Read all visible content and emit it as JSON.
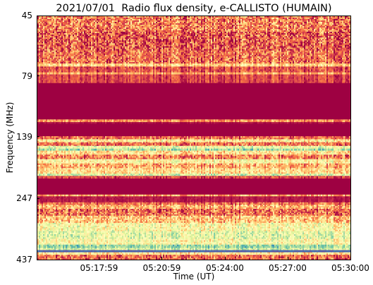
{
  "chart_data": {
    "type": "heatmap",
    "title": "2021/07/01  Radio flux density, e-CALLISTO (HUMAIN)",
    "xlabel": "Time (UT)",
    "ylabel": "Frequency (MHz)",
    "x_tick_labels": [
      "05:17:59",
      "05:20:59",
      "05:24:00",
      "05:27:00",
      "05:30:00"
    ],
    "x_range": [
      "05:15:00",
      "05:30:00"
    ],
    "y_tick_labels": [
      "45",
      "79",
      "139",
      "247",
      "437"
    ],
    "y_range_mhz": [
      45,
      437
    ],
    "colormap": "Spectral",
    "colors": [
      "#9e0142",
      "#d53e4f",
      "#f46d43",
      "#fdae61",
      "#fee08b",
      "#ffffbf",
      "#e6f598",
      "#abdda4",
      "#66c2a5",
      "#3288bd",
      "#5e4fa2"
    ],
    "bands": [
      {
        "f0": 45,
        "f1": 52,
        "level": 0.22,
        "noise": 0.18
      },
      {
        "f0": 52,
        "f1": 62,
        "level": 0.16,
        "noise": 0.2
      },
      {
        "f0": 62,
        "f1": 70,
        "level": 0.2,
        "noise": 0.16
      },
      {
        "f0": 70,
        "f1": 72,
        "level": 0.38,
        "noise": 0.08
      },
      {
        "f0": 72,
        "f1": 76,
        "level": 0.14,
        "noise": 0.1
      },
      {
        "f0": 76,
        "f1": 77.5,
        "level": 0.3,
        "noise": 0.08
      },
      {
        "f0": 77.5,
        "f1": 84,
        "level": 0.12,
        "noise": 0.06
      },
      {
        "f0": 84,
        "f1": 118,
        "level": 0.0,
        "noise": 0.0
      },
      {
        "f0": 118,
        "f1": 121,
        "level": 0.26,
        "noise": 0.08
      },
      {
        "f0": 121,
        "f1": 123,
        "level": 0.02,
        "noise": 0.02
      },
      {
        "f0": 123,
        "f1": 138,
        "level": 0.0,
        "noise": 0.0
      },
      {
        "f0": 138,
        "f1": 142,
        "level": 0.2,
        "noise": 0.12
      },
      {
        "f0": 142,
        "f1": 146,
        "level": 0.45,
        "noise": 0.14
      },
      {
        "f0": 146,
        "f1": 151,
        "level": 0.2,
        "noise": 0.14
      },
      {
        "f0": 151,
        "f1": 155,
        "level": 0.55,
        "noise": 0.12
      },
      {
        "f0": 155,
        "f1": 158,
        "level": 0.7,
        "noise": 0.1
      },
      {
        "f0": 158,
        "f1": 164,
        "level": 0.42,
        "noise": 0.14
      },
      {
        "f0": 164,
        "f1": 171,
        "level": 0.22,
        "noise": 0.16
      },
      {
        "f0": 171,
        "f1": 178,
        "level": 0.48,
        "noise": 0.12
      },
      {
        "f0": 178,
        "f1": 186,
        "level": 0.3,
        "noise": 0.14
      },
      {
        "f0": 186,
        "f1": 196,
        "level": 0.4,
        "noise": 0.12
      },
      {
        "f0": 196,
        "f1": 200,
        "level": 0.62,
        "noise": 0.1
      },
      {
        "f0": 200,
        "f1": 205,
        "level": 0.12,
        "noise": 0.06
      },
      {
        "f0": 205,
        "f1": 238,
        "level": 0.0,
        "noise": 0.0
      },
      {
        "f0": 238,
        "f1": 242,
        "level": 0.3,
        "noise": 0.1
      },
      {
        "f0": 242,
        "f1": 256,
        "level": 0.04,
        "noise": 0.03
      },
      {
        "f0": 256,
        "f1": 262,
        "level": 0.2,
        "noise": 0.12
      },
      {
        "f0": 262,
        "f1": 272,
        "level": 0.32,
        "noise": 0.14
      },
      {
        "f0": 272,
        "f1": 290,
        "level": 0.2,
        "noise": 0.16
      },
      {
        "f0": 290,
        "f1": 310,
        "level": 0.35,
        "noise": 0.16
      },
      {
        "f0": 310,
        "f1": 335,
        "level": 0.5,
        "noise": 0.14
      },
      {
        "f0": 335,
        "f1": 360,
        "level": 0.58,
        "noise": 0.12
      },
      {
        "f0": 360,
        "f1": 380,
        "level": 0.5,
        "noise": 0.12
      },
      {
        "f0": 380,
        "f1": 392,
        "level": 0.72,
        "noise": 0.08
      },
      {
        "f0": 392,
        "f1": 400,
        "level": 0.62,
        "noise": 0.1
      },
      {
        "f0": 400,
        "f1": 408,
        "level": 0.96,
        "noise": 0.02
      },
      {
        "f0": 408,
        "f1": 418,
        "level": 0.42,
        "noise": 0.12
      },
      {
        "f0": 418,
        "f1": 437,
        "level": 0.18,
        "noise": 0.14
      }
    ]
  }
}
